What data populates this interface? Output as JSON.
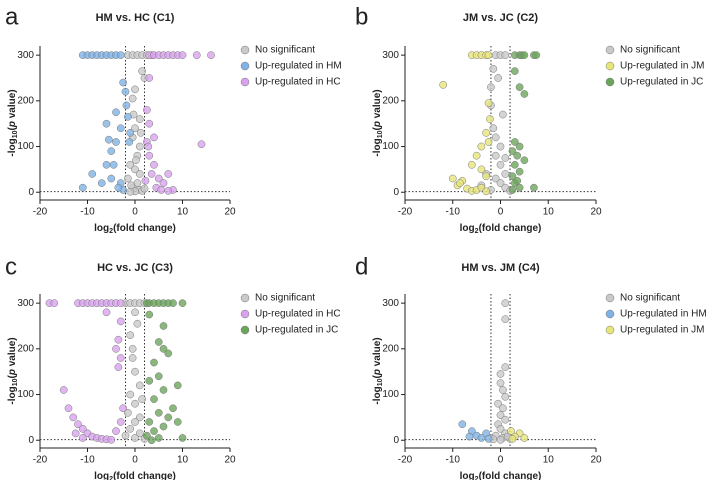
{
  "chart_data": [
    {
      "type": "scatter",
      "label": "a",
      "title": "HM vs. HC (C1)",
      "xlabel_parts": [
        "log",
        "2",
        "(fold change)"
      ],
      "ylabel_parts": [
        "-log",
        "10",
        "(",
        "p",
        " value)"
      ],
      "xlim": [
        -20,
        20
      ],
      "ylim": [
        -17,
        320
      ],
      "xticks": [
        -20,
        -10,
        0,
        10,
        20
      ],
      "yticks": [
        0,
        100,
        200,
        300
      ],
      "vlines": [
        -2,
        2
      ],
      "hline": 1.3,
      "series": [
        {
          "name": "No significant",
          "color": "#c9c9c9",
          "x": [
            -1.5,
            -0.5,
            0.5,
            1.5,
            2.5,
            3.5,
            0,
            1.5,
            2,
            -0.5,
            1,
            0,
            -0.5,
            1,
            0.5,
            -1,
            0,
            1,
            -1.5,
            0.5,
            -0.5,
            1,
            0,
            1.5,
            -1,
            2,
            -0.8,
            0.2,
            1.2,
            -0.3
          ],
          "y": [
            300,
            300,
            300,
            300,
            300,
            300,
            225,
            265,
            250,
            205,
            160,
            140,
            120,
            100,
            80,
            60,
            50,
            40,
            30,
            20,
            10,
            5,
            2,
            3,
            1,
            8,
            15,
            70,
            130,
            170
          ]
        },
        {
          "name": "Up-regulated in HM",
          "color": "#7fb3e6",
          "x": [
            -11,
            -10,
            -9,
            -8,
            -7,
            -6,
            -5,
            -4,
            -3,
            -2.5,
            -2,
            -1.8,
            -1.5,
            -1,
            -1.2,
            -3,
            -4,
            -5,
            -6,
            -4.5,
            -5,
            -7,
            -9,
            -11,
            -3,
            -2.5,
            -3.5,
            -6,
            -5.5,
            -4
          ],
          "y": [
            300,
            300,
            300,
            300,
            300,
            300,
            300,
            300,
            300,
            240,
            220,
            190,
            165,
            130,
            110,
            140,
            110,
            90,
            60,
            60,
            30,
            20,
            40,
            10,
            20,
            5,
            10,
            150,
            115,
            175
          ]
        },
        {
          "name": "Up-regulated in HC",
          "color": "#d8a2ee",
          "x": [
            3,
            4,
            5,
            6,
            7,
            8,
            9,
            10,
            13,
            16,
            14,
            8,
            7,
            3,
            2.5,
            3,
            2.5,
            4,
            5,
            6,
            3.5,
            4.5,
            2.8,
            3,
            2.2,
            5.5,
            7,
            4
          ],
          "y": [
            300,
            300,
            300,
            300,
            300,
            300,
            300,
            300,
            300,
            300,
            105,
            5,
            3,
            80,
            110,
            150,
            180,
            60,
            30,
            20,
            40,
            10,
            100,
            250,
            25,
            5,
            40,
            120
          ]
        }
      ]
    },
    {
      "type": "scatter",
      "label": "b",
      "title": "JM vs. JC (C2)",
      "xlabel_parts": [
        "log",
        "2",
        "(fold change)"
      ],
      "ylabel_parts": [
        "-log",
        "10",
        "(",
        "p",
        " value)"
      ],
      "xlim": [
        -20,
        20
      ],
      "ylim": [
        -17,
        320
      ],
      "xticks": [
        -20,
        -10,
        0,
        10,
        20
      ],
      "yticks": [
        0,
        100,
        200,
        300
      ],
      "vlines": [
        -2,
        2
      ],
      "hline": 1.3,
      "series": [
        {
          "name": "No significant",
          "color": "#c9c9c9",
          "x": [
            -1,
            0,
            1,
            -1.5,
            -2,
            -2,
            -1.5,
            -1,
            0,
            -1,
            0,
            1,
            -3,
            -1,
            0,
            1,
            -2,
            2,
            0.5,
            -0.5,
            1,
            -4
          ],
          "y": [
            300,
            300,
            300,
            270,
            230,
            190,
            140,
            120,
            100,
            80,
            60,
            40,
            40,
            30,
            20,
            10,
            5,
            3,
            170,
            250,
            75,
            15
          ]
        },
        {
          "name": "Up-regulated in JM",
          "color": "#e8e57c",
          "x": [
            -6,
            -5,
            -4,
            -3,
            -2.5,
            -12,
            -2.5,
            -2.2,
            -3,
            -2.5,
            -4,
            -5,
            -6,
            -4,
            -3,
            -8,
            -9,
            -7,
            -6,
            -5,
            -4,
            -3,
            -10,
            -8.5
          ],
          "y": [
            300,
            300,
            300,
            300,
            300,
            235,
            195,
            160,
            130,
            110,
            100,
            80,
            60,
            50,
            35,
            25,
            15,
            8,
            3,
            5,
            10,
            2,
            30,
            20
          ]
        },
        {
          "name": "Up-regulated in JC",
          "color": "#6ba55b",
          "x": [
            3,
            4,
            4.5,
            5,
            7,
            7.5,
            3,
            4,
            5,
            3,
            4,
            2.5,
            3.5,
            5,
            3,
            4,
            2.5,
            3,
            4,
            7,
            2.5,
            3.5
          ],
          "y": [
            300,
            300,
            300,
            300,
            300,
            300,
            265,
            230,
            215,
            110,
            100,
            90,
            80,
            70,
            60,
            45,
            35,
            20,
            10,
            10,
            5,
            25
          ]
        }
      ]
    },
    {
      "type": "scatter",
      "label": "c",
      "title": "HC vs. JC (C3)",
      "xlabel_parts": [
        "log",
        "2",
        "(fold change)"
      ],
      "ylabel_parts": [
        "-log",
        "10",
        "(",
        "p",
        " value)"
      ],
      "xlim": [
        -20,
        20
      ],
      "ylim": [
        -17,
        320
      ],
      "xticks": [
        -20,
        -10,
        0,
        10,
        20
      ],
      "yticks": [
        0,
        100,
        200,
        300
      ],
      "vlines": [
        -2,
        2
      ],
      "hline": 1.3,
      "series": [
        {
          "name": "No significant",
          "color": "#c9c9c9",
          "x": [
            -2,
            -1,
            0,
            1,
            2,
            0,
            0.5,
            -1,
            -0.5,
            0,
            1,
            -1,
            0,
            -1.5,
            1,
            0,
            -1,
            1,
            0,
            -2,
            2,
            -0.5,
            1.5
          ],
          "y": [
            300,
            300,
            300,
            300,
            300,
            280,
            255,
            230,
            180,
            150,
            120,
            100,
            80,
            60,
            50,
            40,
            25,
            15,
            5,
            10,
            3,
            200,
            90
          ]
        },
        {
          "name": "Up-regulated in HC",
          "color": "#d8a2ee",
          "x": [
            -18,
            -17,
            -12,
            -11,
            -10,
            -9,
            -8,
            -7,
            -6,
            -5,
            -4,
            -3,
            -6,
            -3,
            -3.5,
            -4,
            -3,
            -3.5,
            -15,
            -13,
            -12,
            -11,
            -10,
            -9,
            -8,
            -7,
            -6,
            -5,
            -4,
            -3,
            -2.5,
            -14,
            -12.5,
            -11
          ],
          "y": [
            300,
            300,
            300,
            300,
            300,
            300,
            300,
            300,
            300,
            300,
            300,
            300,
            280,
            260,
            220,
            200,
            180,
            160,
            110,
            50,
            35,
            25,
            15,
            8,
            5,
            3,
            2,
            1,
            20,
            40,
            70,
            70,
            15,
            5
          ]
        },
        {
          "name": "Up-regulated in JC",
          "color": "#6ba55b",
          "x": [
            2.5,
            3,
            4,
            5,
            6,
            7,
            8,
            10,
            3,
            6,
            5,
            6,
            7,
            4,
            5,
            9,
            3,
            6,
            4,
            8,
            5,
            7,
            3,
            9,
            6,
            4,
            2.5,
            10,
            5,
            3.5
          ],
          "y": [
            300,
            300,
            300,
            300,
            300,
            300,
            300,
            300,
            275,
            250,
            215,
            200,
            190,
            170,
            140,
            120,
            130,
            110,
            90,
            70,
            60,
            50,
            40,
            40,
            30,
            20,
            10,
            5,
            5,
            0
          ]
        }
      ]
    },
    {
      "type": "scatter",
      "label": "d",
      "title": "HM vs. JM (C4)",
      "xlabel_parts": [
        "log",
        "2",
        "(fold change)"
      ],
      "ylabel_parts": [
        "-log",
        "10",
        "(",
        "p",
        " value)"
      ],
      "xlim": [
        -20,
        20
      ],
      "ylim": [
        -17,
        320
      ],
      "xticks": [
        -20,
        -10,
        0,
        10,
        20
      ],
      "yticks": [
        0,
        100,
        200,
        300
      ],
      "vlines": [
        -2,
        2
      ],
      "hline": 1.3,
      "series": [
        {
          "name": "No significant",
          "color": "#c9c9c9",
          "x": [
            1,
            1,
            1,
            0,
            0,
            0.5,
            1,
            -0.5,
            0.5,
            0,
            1,
            -0.5,
            0,
            1,
            -1,
            0.5,
            2,
            -1.5,
            0,
            1.5
          ],
          "y": [
            300,
            265,
            160,
            145,
            125,
            110,
            95,
            80,
            70,
            55,
            45,
            35,
            25,
            15,
            10,
            5,
            3,
            2,
            1,
            8
          ]
        },
        {
          "name": "Up-regulated in HM",
          "color": "#7fb3e6",
          "x": [
            -8,
            -6,
            -5,
            -4,
            -3,
            -2.5,
            -6.5
          ],
          "y": [
            35,
            20,
            10,
            5,
            15,
            3,
            8
          ]
        },
        {
          "name": "Up-regulated in JM",
          "color": "#e8e57c",
          "x": [
            4,
            5,
            3,
            2.5,
            2.2
          ],
          "y": [
            15,
            5,
            8,
            3,
            20
          ]
        }
      ]
    }
  ]
}
